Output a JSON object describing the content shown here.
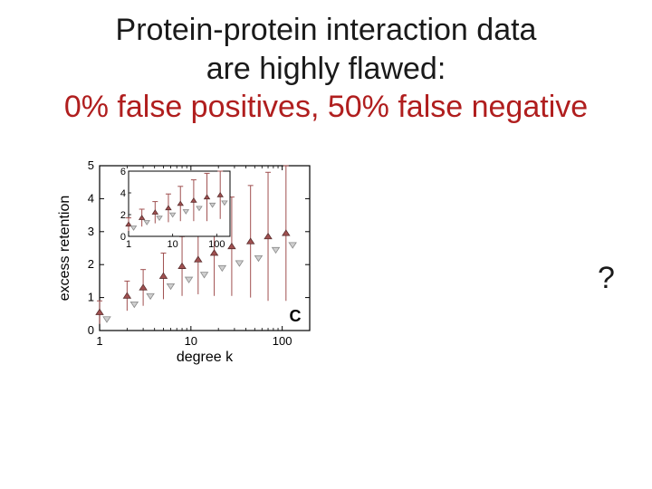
{
  "title": {
    "line1": "Protein-protein interaction data",
    "line2": "are highly flawed:",
    "line3": "0% false positives, 50% false negative",
    "color_main": "#1a1a1a",
    "color_accent": "#b01e1e",
    "fontsize": 34
  },
  "question_mark": "?",
  "chart": {
    "type": "scatter-errorbar-logx",
    "xlabel": "degree k",
    "ylabel": "excess retention",
    "label_fontsize": 16,
    "tick_fontsize": 13,
    "panel_letter": "C",
    "panel_letter_fontsize": 18,
    "background_color": "#ffffff",
    "frame_color": "#000000",
    "tick_color": "#000000",
    "x_log_min": 1,
    "x_log_max": 200,
    "x_ticks": [
      1,
      10,
      100
    ],
    "y_min": 0,
    "y_max": 5,
    "y_ticks": [
      0,
      1,
      2,
      3,
      4,
      5
    ],
    "series": [
      {
        "name": "up-triangles",
        "marker": "triangle-up",
        "color": "#a05050",
        "edge": "#5a2d2d",
        "size": 8,
        "error_color": "#a05050",
        "points": [
          {
            "x": 1,
            "y": 0.55,
            "err": 0.35
          },
          {
            "x": 2,
            "y": 1.05,
            "err": 0.45
          },
          {
            "x": 3,
            "y": 1.3,
            "err": 0.55
          },
          {
            "x": 5,
            "y": 1.65,
            "err": 0.7
          },
          {
            "x": 8,
            "y": 1.95,
            "err": 0.9
          },
          {
            "x": 12,
            "y": 2.15,
            "err": 1.05
          },
          {
            "x": 18,
            "y": 2.35,
            "err": 1.3
          },
          {
            "x": 28,
            "y": 2.55,
            "err": 1.5
          },
          {
            "x": 45,
            "y": 2.7,
            "err": 1.7
          },
          {
            "x": 70,
            "y": 2.85,
            "err": 1.95
          },
          {
            "x": 110,
            "y": 2.95,
            "err": 2.05
          }
        ]
      },
      {
        "name": "down-triangles",
        "marker": "triangle-down",
        "color": "#cfcfcf",
        "edge": "#8a8a8a",
        "size": 8,
        "points": [
          {
            "x": 1.2,
            "y": 0.35
          },
          {
            "x": 2.4,
            "y": 0.8
          },
          {
            "x": 3.6,
            "y": 1.05
          },
          {
            "x": 6,
            "y": 1.35
          },
          {
            "x": 9.5,
            "y": 1.55
          },
          {
            "x": 14,
            "y": 1.7
          },
          {
            "x": 22,
            "y": 1.9
          },
          {
            "x": 34,
            "y": 2.05
          },
          {
            "x": 55,
            "y": 2.2
          },
          {
            "x": 85,
            "y": 2.45
          },
          {
            "x": 130,
            "y": 2.6
          }
        ]
      }
    ],
    "inset": {
      "x_log_min": 1,
      "x_log_max": 200,
      "x_ticks": [
        1,
        10,
        100
      ],
      "y_min": 0,
      "y_max": 6,
      "y_ticks": [
        0,
        2,
        4,
        6
      ],
      "series": [
        {
          "name": "up-triangles",
          "marker": "triangle-up",
          "color": "#a05050",
          "edge": "#5a2d2d",
          "size": 6,
          "error_color": "#a05050",
          "points": [
            {
              "x": 1,
              "y": 1.1,
              "err": 0.6
            },
            {
              "x": 2,
              "y": 1.7,
              "err": 0.8
            },
            {
              "x": 4,
              "y": 2.2,
              "err": 1.0
            },
            {
              "x": 8,
              "y": 2.6,
              "err": 1.3
            },
            {
              "x": 15,
              "y": 3.0,
              "err": 1.6
            },
            {
              "x": 30,
              "y": 3.3,
              "err": 1.9
            },
            {
              "x": 60,
              "y": 3.6,
              "err": 2.2
            },
            {
              "x": 120,
              "y": 3.8,
              "err": 2.2
            }
          ]
        },
        {
          "name": "down-triangles",
          "marker": "triangle-down",
          "color": "#cfcfcf",
          "edge": "#8a8a8a",
          "size": 6,
          "points": [
            {
              "x": 1.3,
              "y": 0.8
            },
            {
              "x": 2.6,
              "y": 1.3
            },
            {
              "x": 5,
              "y": 1.7
            },
            {
              "x": 10,
              "y": 2.0
            },
            {
              "x": 20,
              "y": 2.3
            },
            {
              "x": 40,
              "y": 2.6
            },
            {
              "x": 80,
              "y": 2.9
            },
            {
              "x": 150,
              "y": 3.1
            }
          ]
        }
      ]
    }
  }
}
